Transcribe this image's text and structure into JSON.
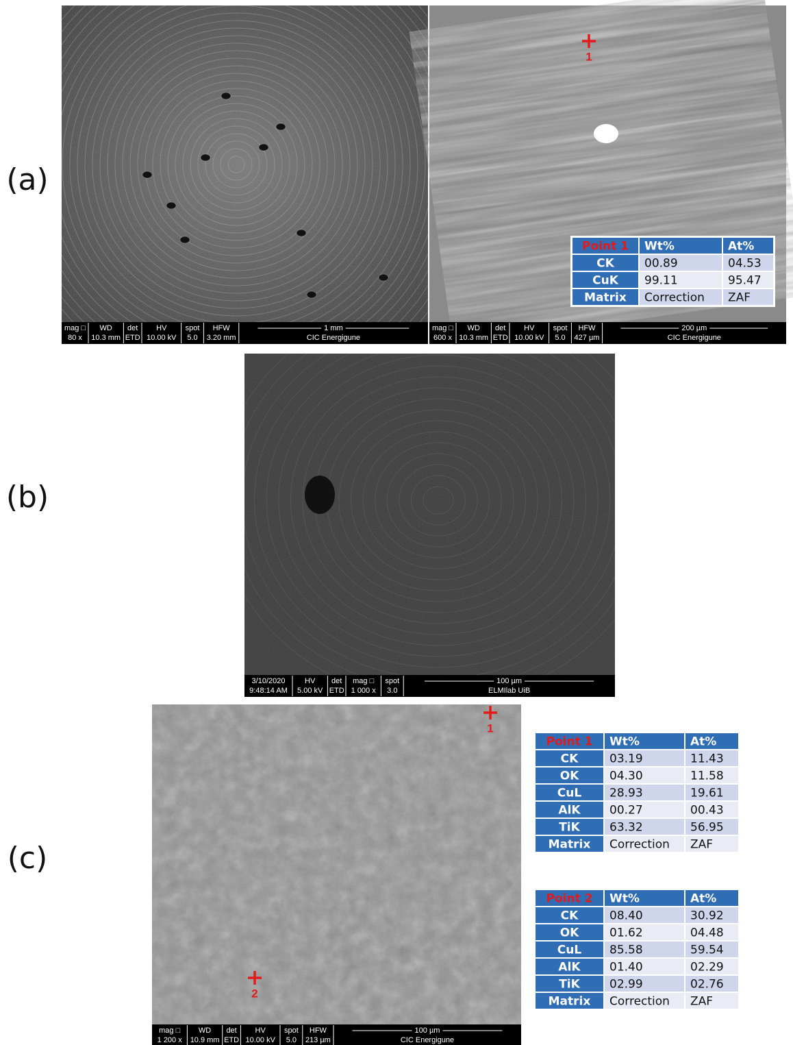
{
  "panel_labels": [
    "(a)",
    "(b)",
    "(c)"
  ],
  "images": [
    {
      "fields": [
        {
          "name": "mag □",
          "value": "80 x"
        },
        {
          "name": "WD",
          "value": "10.3 mm"
        },
        {
          "name": "det",
          "value": "ETD"
        },
        {
          "name": "HV",
          "value": "10.00 kV"
        },
        {
          "name": "spot",
          "value": "5.0"
        },
        {
          "name": "HFW",
          "value": "3.20 mm"
        }
      ],
      "scale_bar": "1 mm",
      "lab": "CIC Energigune",
      "points": []
    },
    {
      "fields": [
        {
          "name": "mag □",
          "value": "600 x"
        },
        {
          "name": "WD",
          "value": "10.3 mm"
        },
        {
          "name": "det",
          "value": "ETD"
        },
        {
          "name": "HV",
          "value": "10.00 kV"
        },
        {
          "name": "spot",
          "value": "5.0"
        },
        {
          "name": "HFW",
          "value": "427 µm"
        }
      ],
      "scale_bar": "200 µm",
      "lab": "CIC Energigune",
      "points": [
        "1"
      ]
    },
    {
      "fields": [
        {
          "name": "3/10/2020",
          "value": "9:48:14 AM"
        },
        {
          "name": "HV",
          "value": "5.00 kV"
        },
        {
          "name": "det",
          "value": "ETD"
        },
        {
          "name": "mag □",
          "value": "1 000 x"
        },
        {
          "name": "spot",
          "value": "3.0"
        }
      ],
      "scale_bar": "100 µm",
      "lab": "ELMIlab UiB",
      "points": []
    },
    {
      "fields": [
        {
          "name": "mag □",
          "value": "1 200 x"
        },
        {
          "name": "WD",
          "value": "10.9 mm"
        },
        {
          "name": "det",
          "value": "ETD"
        },
        {
          "name": "HV",
          "value": "10.00 kV"
        },
        {
          "name": "spot",
          "value": "5.0"
        },
        {
          "name": "HFW",
          "value": "213 µm"
        }
      ],
      "scale_bar": "100 µm",
      "lab": "CIC Energigune",
      "points": [
        "1",
        "2"
      ]
    }
  ],
  "tables": [
    {
      "header": [
        "Point 1",
        "Wt%",
        "At%"
      ],
      "rows": [
        [
          "CK",
          "00.89",
          "04.53"
        ],
        [
          "CuK",
          "99.11",
          "95.47"
        ],
        [
          "Matrix",
          "Correction",
          "ZAF"
        ]
      ]
    },
    {
      "header": [
        "Point 1",
        "Wt%",
        "At%"
      ],
      "rows": [
        [
          "CK",
          "03.19",
          "11.43"
        ],
        [
          "OK",
          "04.30",
          "11.58"
        ],
        [
          "CuL",
          "28.93",
          "19.61"
        ],
        [
          "AlK",
          "00.27",
          "00.43"
        ],
        [
          "TiK",
          "63.32",
          "56.95"
        ],
        [
          "Matrix",
          "Correction",
          "ZAF"
        ]
      ]
    },
    {
      "header": [
        "Point 2",
        "Wt%",
        "At%"
      ],
      "rows": [
        [
          "CK",
          "08.40",
          "30.92"
        ],
        [
          "OK",
          "01.62",
          "04.48"
        ],
        [
          "CuL",
          "85.58",
          "59.54"
        ],
        [
          "AlK",
          "01.40",
          "02.29"
        ],
        [
          "TiK",
          "02.99",
          "02.76"
        ],
        [
          "Matrix",
          "Correction",
          "ZAF"
        ]
      ]
    }
  ]
}
